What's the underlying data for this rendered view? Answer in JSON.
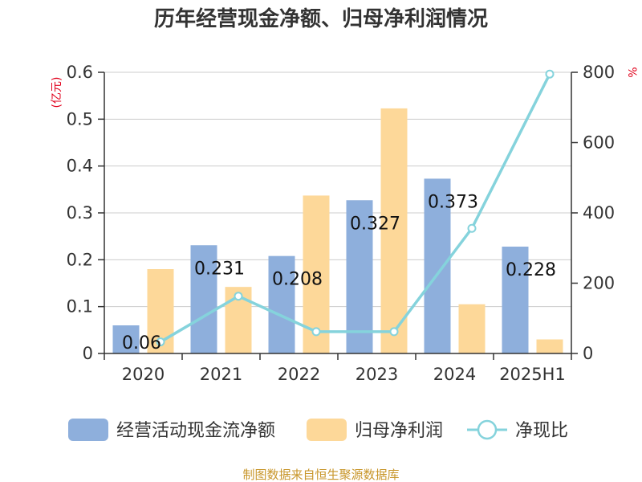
{
  "chart_data": {
    "type": "bar",
    "title": "历年经营现金净额、归母净利润情况",
    "categories": [
      "2020",
      "2021",
      "2022",
      "2023",
      "2024",
      "2025H1"
    ],
    "series": [
      {
        "name": "经营活动现金流净额",
        "kind": "bar",
        "axis": "left",
        "color": "#8eafdc",
        "values": [
          0.06,
          0.231,
          0.208,
          0.327,
          0.373,
          0.228
        ],
        "labels": [
          "0.06",
          "0.231",
          "0.208",
          "0.327",
          "0.373",
          "0.228"
        ]
      },
      {
        "name": "归母净利润",
        "kind": "bar",
        "axis": "left",
        "color": "#fdd899",
        "values": [
          0.18,
          0.142,
          0.337,
          0.523,
          0.105,
          0.03
        ]
      },
      {
        "name": "净现比",
        "kind": "line",
        "axis": "right",
        "color": "#85d3dc",
        "values": [
          33,
          163,
          62,
          62,
          356,
          795
        ]
      }
    ],
    "y_left": {
      "label": "(亿元)",
      "ylim": [
        0,
        0.6
      ],
      "ticks": [
        "0",
        "0.1",
        "0.2",
        "0.3",
        "0.4",
        "0.5",
        "0.6"
      ]
    },
    "y_right": {
      "label": "%",
      "ylim": [
        0,
        800
      ],
      "ticks": [
        "0",
        "200",
        "400",
        "600",
        "800"
      ]
    },
    "grid": true,
    "legend_position": "bottom"
  },
  "source_text": "制图数据来自恒生聚源数据库"
}
